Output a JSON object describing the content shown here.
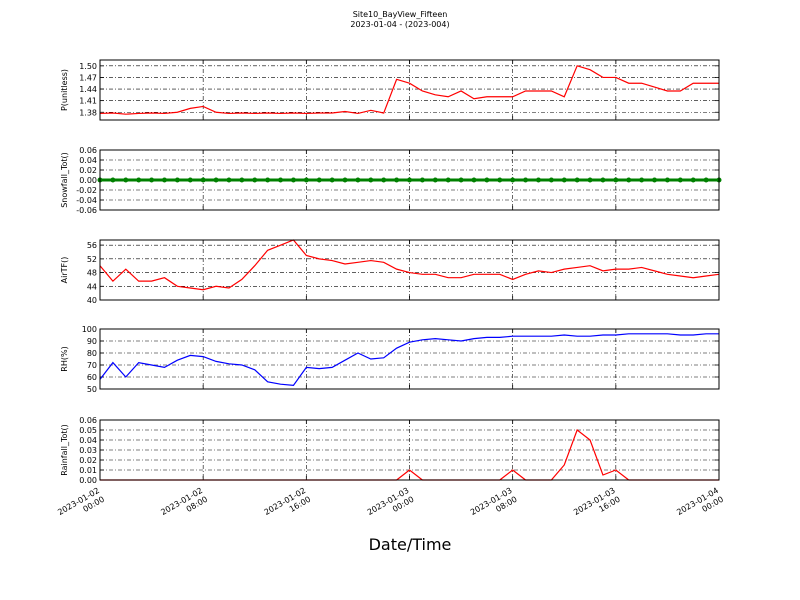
{
  "title": "Site10_BayView_Fifteen",
  "subtitle": "2023-01-04 - (2023-004)",
  "xlabel": "Date/Time",
  "xlim": [
    "2023-01-02 00:00",
    "2023-01-04 00:00"
  ],
  "xticks": [
    "2023-01-02 00:00",
    "2023-01-02 08:00",
    "2023-01-02 16:00",
    "2023-01-03 00:00",
    "2023-01-03 08:00",
    "2023-01-03 16:00",
    "2023-01-04 00:00"
  ],
  "x": [
    "2023-01-02 00:00",
    "2023-01-02 01:00",
    "2023-01-02 02:00",
    "2023-01-02 03:00",
    "2023-01-02 04:00",
    "2023-01-02 05:00",
    "2023-01-02 06:00",
    "2023-01-02 07:00",
    "2023-01-02 08:00",
    "2023-01-02 09:00",
    "2023-01-02 10:00",
    "2023-01-02 11:00",
    "2023-01-02 12:00",
    "2023-01-02 13:00",
    "2023-01-02 14:00",
    "2023-01-02 15:00",
    "2023-01-02 16:00",
    "2023-01-02 17:00",
    "2023-01-02 18:00",
    "2023-01-02 19:00",
    "2023-01-02 20:00",
    "2023-01-02 21:00",
    "2023-01-02 22:00",
    "2023-01-02 23:00",
    "2023-01-03 00:00",
    "2023-01-03 01:00",
    "2023-01-03 02:00",
    "2023-01-03 03:00",
    "2023-01-03 04:00",
    "2023-01-03 05:00",
    "2023-01-03 06:00",
    "2023-01-03 07:00",
    "2023-01-03 08:00",
    "2023-01-03 09:00",
    "2023-01-03 10:00",
    "2023-01-03 11:00",
    "2023-01-03 12:00",
    "2023-01-03 13:00",
    "2023-01-03 14:00",
    "2023-01-03 15:00",
    "2023-01-03 16:00",
    "2023-01-03 17:00",
    "2023-01-03 18:00",
    "2023-01-03 19:00",
    "2023-01-03 20:00",
    "2023-01-03 21:00",
    "2023-01-03 22:00",
    "2023-01-03 23:00",
    "2023-01-04 00:00"
  ],
  "chart_data": [
    {
      "type": "line",
      "ylabel": "P(unitless)",
      "ylim": [
        1.36,
        1.515
      ],
      "grid": true,
      "yticks": [
        1.38,
        1.41,
        1.44,
        1.47,
        {
          "value": 1.5,
          "label": "1.50"
        }
      ],
      "series": [
        {
          "color": "#ff0000",
          "values": [
            1.377,
            1.378,
            1.375,
            1.377,
            1.378,
            1.377,
            1.38,
            1.39,
            1.395,
            1.38,
            1.377,
            1.378,
            1.377,
            1.378,
            1.377,
            1.378,
            1.377,
            1.378,
            1.378,
            1.382,
            1.377,
            1.385,
            1.378,
            1.465,
            1.455,
            1.435,
            1.425,
            1.42,
            1.435,
            1.415,
            1.42,
            1.42,
            1.42,
            1.435,
            1.435,
            1.435,
            1.42,
            1.5,
            1.49,
            1.47,
            1.47,
            1.455,
            1.455,
            1.445,
            1.435,
            1.435,
            1.455,
            1.455,
            1.455
          ]
        }
      ]
    },
    {
      "type": "line",
      "ylabel": "Snowfall_Tot()",
      "ylim": [
        -0.06,
        0.06
      ],
      "grid": true,
      "markers": true,
      "yticks": [
        -0.06,
        -0.04,
        -0.02,
        {
          "value": 0,
          "label": "0.00"
        },
        0.02,
        0.04,
        0.06
      ],
      "series": [
        {
          "color": "#008000",
          "values": [
            0,
            0,
            0,
            0,
            0,
            0,
            0,
            0,
            0,
            0,
            0,
            0,
            0,
            0,
            0,
            0,
            0,
            0,
            0,
            0,
            0,
            0,
            0,
            0,
            0,
            0,
            0,
            0,
            0,
            0,
            0,
            0,
            0,
            0,
            0,
            0,
            0,
            0,
            0,
            0,
            0,
            0,
            0,
            0,
            0,
            0,
            0,
            0,
            0
          ]
        }
      ]
    },
    {
      "type": "line",
      "ylabel": "AirTF()",
      "ylim": [
        40,
        57.5
      ],
      "grid": true,
      "yticks": [
        40,
        44,
        48,
        52,
        56
      ],
      "series": [
        {
          "color": "#ff0000",
          "values": [
            50,
            45.5,
            49,
            45.5,
            45.5,
            46.5,
            44,
            43.5,
            43,
            44,
            43.5,
            46,
            50,
            54.5,
            56,
            57.5,
            53,
            52,
            51.5,
            50.5,
            51,
            51.5,
            51,
            49,
            48,
            47.5,
            47.5,
            46.5,
            46.5,
            47.5,
            47.5,
            47.5,
            46,
            47.5,
            48.5,
            48,
            49,
            49.5,
            50,
            48.5,
            49,
            49,
            49.5,
            48.5,
            47.5,
            47,
            46.5,
            47,
            47.5
          ]
        }
      ]
    },
    {
      "type": "line",
      "ylabel": "RH(%)",
      "ylim": [
        50,
        100
      ],
      "grid": true,
      "yticks": [
        50,
        60,
        70,
        80,
        90,
        100
      ],
      "series": [
        {
          "color": "#0000ff",
          "values": [
            58,
            72,
            60,
            72,
            70,
            68,
            74,
            78,
            77,
            73,
            71,
            70,
            66,
            56,
            54,
            53,
            68,
            67,
            68,
            74,
            80,
            75,
            76,
            84,
            89,
            91,
            92,
            91,
            90,
            92,
            93,
            93,
            94,
            94,
            94,
            94,
            95,
            94,
            94,
            95,
            95,
            96,
            96,
            96,
            96,
            95,
            95,
            96,
            96
          ]
        }
      ]
    },
    {
      "type": "line",
      "ylabel": "Rainfall_Tot()",
      "ylim": [
        0,
        0.06
      ],
      "grid": true,
      "yticks": [
        {
          "value": 0,
          "label": "0.00"
        },
        0.01,
        0.02,
        0.03,
        0.04,
        0.05,
        0.06
      ],
      "series": [
        {
          "color": "#ff0000",
          "values": [
            0,
            0,
            0,
            0,
            0,
            0,
            0,
            0,
            0,
            0,
            0,
            0,
            0,
            0,
            0,
            0,
            0,
            0,
            0,
            0,
            0,
            0,
            0,
            0,
            0.01,
            0,
            0,
            0,
            0,
            0,
            0,
            0,
            0.01,
            0,
            0,
            0,
            0.015,
            0.05,
            0.04,
            0.005,
            0.01,
            0,
            0,
            0,
            0,
            0,
            0,
            0,
            0
          ]
        }
      ]
    }
  ]
}
